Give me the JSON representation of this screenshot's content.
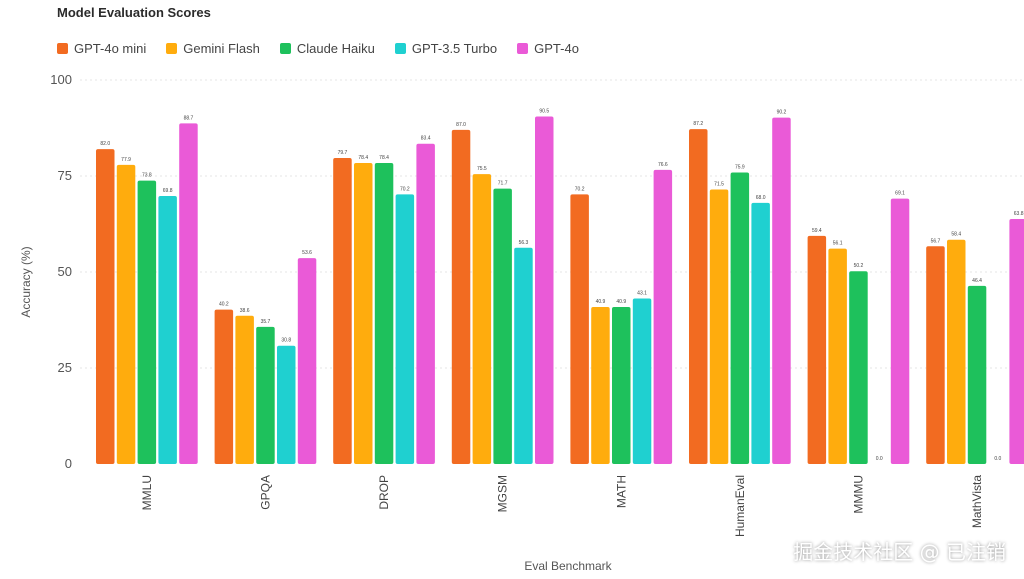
{
  "chart_data": {
    "type": "bar",
    "title": "Model Evaluation Scores",
    "xlabel": "Eval Benchmark",
    "ylabel": "Accuracy (%)",
    "ylim": [
      0,
      100
    ],
    "yticks": [
      "0",
      "25",
      "50",
      "75",
      "100"
    ],
    "grid": true,
    "legend_position": "top-left",
    "categories": [
      "MMLU",
      "GPQA",
      "DROP",
      "MGSM",
      "MATH",
      "HumanEval",
      "MMMU",
      "MathVista"
    ],
    "series": [
      {
        "name": "GPT-4o mini",
        "color": "#f26b21",
        "values": [
          82.0,
          40.2,
          79.7,
          87.0,
          70.2,
          87.2,
          59.4,
          56.7
        ],
        "labels": [
          "82.0",
          "40.2",
          "79.7",
          "87.0",
          "70.2",
          "87.2",
          "59.4",
          "56.7"
        ]
      },
      {
        "name": "Gemini Flash",
        "color": "#ffac0d",
        "values": [
          77.9,
          38.6,
          78.4,
          75.5,
          40.9,
          71.5,
          56.1,
          58.4
        ],
        "labels": [
          "77.9",
          "38.6",
          "78.4",
          "75.5",
          "40.9",
          "71.5",
          "56.1",
          "58.4"
        ]
      },
      {
        "name": "Claude Haiku",
        "color": "#1ec15c",
        "values": [
          73.8,
          35.7,
          78.4,
          71.7,
          40.9,
          75.9,
          50.2,
          46.4
        ],
        "labels": [
          "73.8",
          "35.7",
          "78.4",
          "71.7",
          "40.9",
          "75.9",
          "50.2",
          "46.4"
        ]
      },
      {
        "name": "GPT-3.5 Turbo",
        "color": "#1fd0d0",
        "values": [
          69.8,
          30.8,
          70.2,
          56.3,
          43.1,
          68.0,
          0,
          0
        ],
        "labels": [
          "69.8",
          "30.8",
          "70.2",
          "56.3",
          "43.1",
          "68.0",
          "0.0",
          "0.0"
        ]
      },
      {
        "name": "GPT-4o",
        "color": "#ea5ad7",
        "values": [
          88.7,
          53.6,
          83.4,
          90.5,
          76.6,
          90.2,
          69.1,
          63.8
        ],
        "labels": [
          "88.7",
          "53.6",
          "83.4",
          "90.5",
          "76.6",
          "90.2",
          "69.1",
          "63.8"
        ]
      }
    ]
  },
  "watermark": "掘金技术社区 @ 已注销"
}
